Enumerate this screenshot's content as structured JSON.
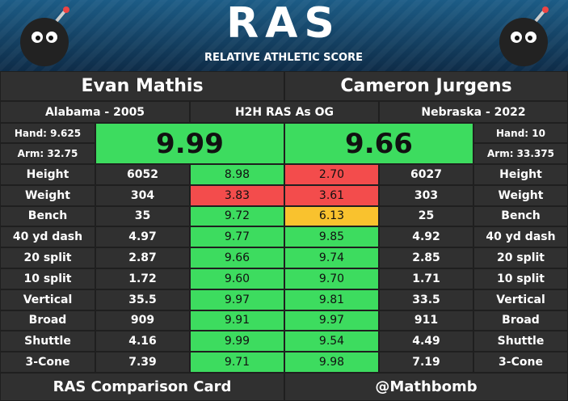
{
  "header": {
    "logo": "RAS",
    "subtitle": "RELATIVE ATHLETIC SCORE"
  },
  "players": [
    {
      "name": "Evan Mathis",
      "school": "Alabama - 2005",
      "hand": "Hand: 9.625",
      "arm": "Arm: 32.75",
      "ras": "9.99",
      "ras_color": "#3ddc5f"
    },
    {
      "name": "Cameron Jurgens",
      "school": "Nebraska - 2022",
      "hand": "Hand: 10",
      "arm": "Arm: 33.375",
      "ras": "9.66",
      "ras_color": "#3ddc5f"
    }
  ],
  "comparison_label": "H2H RAS As OG",
  "table": {
    "rows": [
      {
        "metric": "Height",
        "left_value": "6052",
        "left_score": "8.98",
        "left_color": "#3ddc5f",
        "right_score": "2.70",
        "right_color": "#f34c4c",
        "right_value": "6027"
      },
      {
        "metric": "Weight",
        "left_value": "304",
        "left_score": "3.83",
        "left_color": "#f34c4c",
        "right_score": "3.61",
        "right_color": "#f34c4c",
        "right_value": "303"
      },
      {
        "metric": "Bench",
        "left_value": "35",
        "left_score": "9.72",
        "left_color": "#3ddc5f",
        "right_score": "6.13",
        "right_color": "#f9c22e",
        "right_value": "25"
      },
      {
        "metric": "40 yd dash",
        "left_value": "4.97",
        "left_score": "9.77",
        "left_color": "#3ddc5f",
        "right_score": "9.85",
        "right_color": "#3ddc5f",
        "right_value": "4.92"
      },
      {
        "metric": "20 split",
        "left_value": "2.87",
        "left_score": "9.66",
        "left_color": "#3ddc5f",
        "right_score": "9.74",
        "right_color": "#3ddc5f",
        "right_value": "2.85"
      },
      {
        "metric": "10 split",
        "left_value": "1.72",
        "left_score": "9.60",
        "left_color": "#3ddc5f",
        "right_score": "9.70",
        "right_color": "#3ddc5f",
        "right_value": "1.71"
      },
      {
        "metric": "Vertical",
        "left_value": "35.5",
        "left_score": "9.97",
        "left_color": "#3ddc5f",
        "right_score": "9.81",
        "right_color": "#3ddc5f",
        "right_value": "33.5"
      },
      {
        "metric": "Broad",
        "left_value": "909",
        "left_score": "9.91",
        "left_color": "#3ddc5f",
        "right_score": "9.97",
        "right_color": "#3ddc5f",
        "right_value": "911"
      },
      {
        "metric": "Shuttle",
        "left_value": "4.16",
        "left_score": "9.99",
        "left_color": "#3ddc5f",
        "right_score": "9.54",
        "right_color": "#3ddc5f",
        "right_value": "4.49"
      },
      {
        "metric": "3-Cone",
        "left_value": "7.39",
        "left_score": "9.71",
        "left_color": "#3ddc5f",
        "right_score": "9.98",
        "right_color": "#3ddc5f",
        "right_value": "7.19"
      }
    ]
  },
  "footer": {
    "left": "RAS Comparison Card",
    "right": "@Mathbomb"
  }
}
